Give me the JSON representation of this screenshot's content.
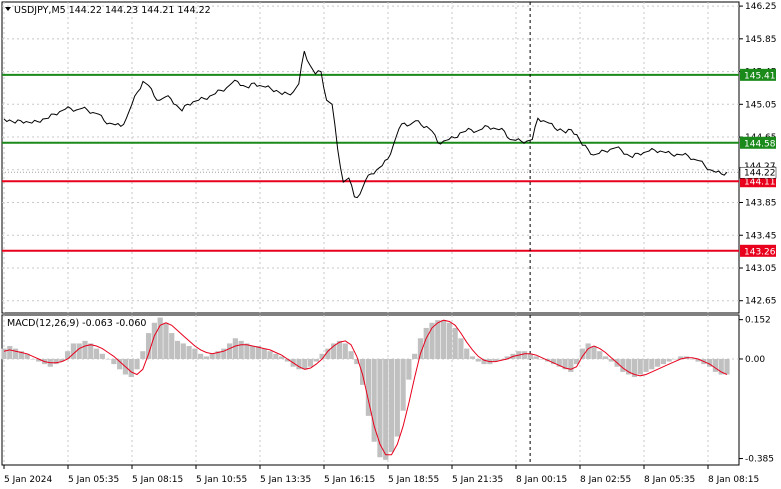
{
  "chart_data": [
    {
      "type": "line",
      "symbol": "USDJPY,M5",
      "ohlc": "144.22 144.23 144.21 144.22",
      "ylim": [
        142.5,
        146.3
      ],
      "y_ticks": [
        "146.25",
        "145.85",
        "145.45",
        "145.05",
        "144.65",
        "144.25",
        "143.85",
        "143.45",
        "143.05",
        "142.65"
      ],
      "x_ticks": [
        "5 Jan 2024",
        "5 Jan 05:35",
        "5 Jan 08:15",
        "5 Jan 10:55",
        "5 Jan 13:35",
        "5 Jan 16:15",
        "5 Jan 18:55",
        "5 Jan 21:35",
        "8 Jan 00:15",
        "8 Jan 02:55",
        "8 Jan 05:35",
        "8 Jan 08:15"
      ],
      "current_price": "144.22",
      "current_price_partial": "144.27",
      "levels": [
        {
          "value": 145.41,
          "label": "145.41",
          "color": "#1a8a1a"
        },
        {
          "value": 144.58,
          "label": "144.58",
          "color": "#1a8a1a"
        },
        {
          "value": 144.11,
          "label": "144.11",
          "color": "#e8001c"
        },
        {
          "value": 143.26,
          "label": "143.26",
          "color": "#e8001c"
        }
      ],
      "price_path": [
        [
          0,
          144.87
        ],
        [
          0.5,
          144.86
        ],
        [
          1,
          144.82
        ],
        [
          1.5,
          144.85
        ],
        [
          2,
          144.84
        ],
        [
          2.5,
          144.82
        ],
        [
          3,
          144.84
        ],
        [
          3.5,
          144.87
        ],
        [
          4,
          144.88
        ],
        [
          4.5,
          144.93
        ],
        [
          5,
          144.96
        ],
        [
          5.5,
          144.99
        ],
        [
          6,
          145.0
        ],
        [
          6.5,
          144.98
        ],
        [
          7,
          145.0
        ],
        [
          7.5,
          144.98
        ],
        [
          8,
          144.95
        ],
        [
          8.5,
          144.93
        ],
        [
          9,
          144.85
        ],
        [
          9.5,
          144.82
        ],
        [
          10,
          144.8
        ],
        [
          10.5,
          144.78
        ],
        [
          11,
          144.88
        ],
        [
          11.5,
          145.05
        ],
        [
          12,
          145.2
        ],
        [
          12.5,
          145.33
        ],
        [
          13,
          145.28
        ],
        [
          13.5,
          145.15
        ],
        [
          14,
          145.1
        ],
        [
          14.5,
          145.14
        ],
        [
          15,
          145.12
        ],
        [
          15.5,
          145.04
        ],
        [
          16,
          144.97
        ],
        [
          16.5,
          145.05
        ],
        [
          17,
          145.08
        ],
        [
          17.5,
          145.1
        ],
        [
          18,
          145.12
        ],
        [
          18.5,
          145.15
        ],
        [
          19,
          145.18
        ],
        [
          19.5,
          145.22
        ],
        [
          20,
          145.25
        ],
        [
          20.5,
          145.31
        ],
        [
          21,
          145.33
        ],
        [
          21.5,
          145.28
        ],
        [
          22,
          145.25
        ],
        [
          22.5,
          145.31
        ],
        [
          23,
          145.28
        ],
        [
          23.5,
          145.26
        ],
        [
          24,
          145.24
        ],
        [
          24.5,
          145.22
        ],
        [
          25,
          145.17
        ],
        [
          25.5,
          145.18
        ],
        [
          26,
          145.2
        ],
        [
          26.5,
          145.3
        ],
        [
          27,
          145.7
        ],
        [
          27.5,
          145.53
        ],
        [
          28,
          145.42
        ],
        [
          28.5,
          145.45
        ],
        [
          29,
          145.1
        ],
        [
          29.5,
          145.05
        ],
        [
          30,
          144.5
        ],
        [
          30.5,
          144.1
        ],
        [
          31,
          144.15
        ],
        [
          31.5,
          143.92
        ],
        [
          32,
          143.95
        ],
        [
          32.5,
          144.12
        ],
        [
          33,
          144.2
        ],
        [
          33.5,
          144.25
        ],
        [
          34,
          144.3
        ],
        [
          34.5,
          144.38
        ],
        [
          35,
          144.55
        ],
        [
          35.5,
          144.75
        ],
        [
          36,
          144.82
        ],
        [
          36.5,
          144.8
        ],
        [
          37,
          144.85
        ],
        [
          37.5,
          144.8
        ],
        [
          38,
          144.78
        ],
        [
          38.5,
          144.72
        ],
        [
          39,
          144.58
        ],
        [
          39.5,
          144.6
        ],
        [
          40,
          144.62
        ],
        [
          40.5,
          144.64
        ],
        [
          41,
          144.7
        ],
        [
          41.5,
          144.72
        ],
        [
          42,
          144.74
        ],
        [
          42.5,
          144.72
        ],
        [
          43,
          144.75
        ],
        [
          43.5,
          144.78
        ],
        [
          44,
          144.76
        ],
        [
          44.5,
          144.74
        ],
        [
          45,
          144.72
        ],
        [
          45.5,
          144.62
        ],
        [
          46,
          144.61
        ],
        [
          46.5,
          144.6
        ],
        [
          47,
          144.6
        ],
        [
          47.5,
          144.62
        ],
        [
          48,
          144.88
        ],
        [
          48.5,
          144.85
        ],
        [
          49,
          144.82
        ],
        [
          49.5,
          144.76
        ],
        [
          50,
          144.75
        ],
        [
          50.5,
          144.7
        ],
        [
          51,
          144.74
        ],
        [
          51.5,
          144.68
        ],
        [
          52,
          144.55
        ],
        [
          52.5,
          144.5
        ],
        [
          53,
          144.43
        ],
        [
          53.5,
          144.45
        ],
        [
          54,
          144.48
        ],
        [
          54.5,
          144.5
        ],
        [
          55,
          144.52
        ],
        [
          55.5,
          144.49
        ],
        [
          56,
          144.44
        ],
        [
          56.5,
          144.4
        ],
        [
          57,
          144.45
        ],
        [
          57.5,
          144.46
        ],
        [
          58,
          144.48
        ],
        [
          58.5,
          144.49
        ],
        [
          59,
          144.48
        ],
        [
          59.5,
          144.46
        ],
        [
          60,
          144.44
        ],
        [
          60.5,
          144.44
        ],
        [
          61,
          144.43
        ],
        [
          61.5,
          144.42
        ],
        [
          62,
          144.38
        ],
        [
          62.5,
          144.36
        ],
        [
          63,
          144.3
        ],
        [
          63.5,
          144.25
        ],
        [
          64,
          144.22
        ],
        [
          64.5,
          144.2
        ],
        [
          65,
          144.22
        ]
      ],
      "separator_x": 47.3
    },
    {
      "type": "bar",
      "title": "MACD(12,26,9) -0.063 -0.060",
      "ylim": [
        -0.41,
        0.17
      ],
      "y_ticks": [
        "0.152",
        "0.00",
        "-0.385"
      ],
      "histogram": [
        0.04,
        0.05,
        0.04,
        0.03,
        0.02,
        0.0,
        -0.01,
        -0.02,
        -0.03,
        -0.02,
        -0.01,
        0.03,
        0.06,
        0.06,
        0.07,
        0.06,
        0.04,
        0.02,
        0.0,
        -0.02,
        -0.04,
        -0.06,
        -0.07,
        -0.04,
        0.03,
        0.1,
        0.14,
        0.16,
        0.14,
        0.1,
        0.07,
        0.06,
        0.05,
        0.04,
        0.02,
        0.01,
        0.02,
        0.03,
        0.04,
        0.06,
        0.08,
        0.07,
        0.06,
        0.05,
        0.05,
        0.04,
        0.03,
        0.02,
        0.01,
        -0.01,
        -0.03,
        -0.04,
        -0.04,
        -0.03,
        -0.01,
        0.02,
        0.04,
        0.06,
        0.07,
        0.06,
        0.03,
        -0.02,
        -0.1,
        -0.22,
        -0.32,
        -0.38,
        -0.39,
        -0.36,
        -0.3,
        -0.2,
        -0.08,
        0.02,
        0.08,
        0.12,
        0.14,
        0.15,
        0.15,
        0.14,
        0.12,
        0.08,
        0.04,
        0.01,
        -0.01,
        -0.02,
        -0.02,
        -0.01,
        0.0,
        0.01,
        0.02,
        0.03,
        0.03,
        0.02,
        0.01,
        0.0,
        -0.01,
        -0.02,
        -0.03,
        -0.04,
        -0.05,
        -0.02,
        0.04,
        0.06,
        0.05,
        0.03,
        0.01,
        -0.01,
        -0.03,
        -0.05,
        -0.06,
        -0.07,
        -0.06,
        -0.05,
        -0.04,
        -0.03,
        -0.02,
        -0.01,
        0.0,
        0.01,
        0.01,
        0.0,
        -0.01,
        -0.02,
        -0.03,
        -0.05,
        -0.06,
        -0.06
      ],
      "signal": [
        0.03,
        0.035,
        0.03,
        0.025,
        0.02,
        0.01,
        0.0,
        -0.01,
        -0.015,
        -0.015,
        -0.01,
        0.0,
        0.02,
        0.04,
        0.05,
        0.055,
        0.05,
        0.04,
        0.025,
        0.01,
        -0.01,
        -0.03,
        -0.05,
        -0.06,
        -0.04,
        0.02,
        0.09,
        0.13,
        0.14,
        0.13,
        0.11,
        0.09,
        0.07,
        0.05,
        0.035,
        0.025,
        0.02,
        0.025,
        0.03,
        0.04,
        0.05,
        0.055,
        0.055,
        0.05,
        0.045,
        0.04,
        0.035,
        0.025,
        0.015,
        0.0,
        -0.015,
        -0.03,
        -0.04,
        -0.035,
        -0.02,
        0.0,
        0.03,
        0.05,
        0.065,
        0.07,
        0.055,
        0.01,
        -0.06,
        -0.16,
        -0.26,
        -0.33,
        -0.37,
        -0.37,
        -0.33,
        -0.26,
        -0.17,
        -0.07,
        0.02,
        0.08,
        0.12,
        0.14,
        0.15,
        0.145,
        0.13,
        0.1,
        0.065,
        0.035,
        0.01,
        -0.005,
        -0.01,
        -0.01,
        -0.005,
        0.0,
        0.01,
        0.015,
        0.02,
        0.02,
        0.015,
        0.005,
        -0.005,
        -0.015,
        -0.025,
        -0.035,
        -0.04,
        -0.03,
        0.01,
        0.04,
        0.05,
        0.04,
        0.025,
        0.005,
        -0.015,
        -0.035,
        -0.05,
        -0.06,
        -0.065,
        -0.06,
        -0.05,
        -0.04,
        -0.03,
        -0.02,
        -0.01,
        0.0,
        0.005,
        0.005,
        0.0,
        -0.01,
        -0.02,
        -0.035,
        -0.05,
        -0.06
      ]
    }
  ],
  "colors": {
    "price_line": "#000000",
    "grid": "#c8c8c8",
    "histogram": "#c0c0c0",
    "signal": "#e8001c",
    "separator": "#000000",
    "current_price_box": "#ffffff"
  }
}
